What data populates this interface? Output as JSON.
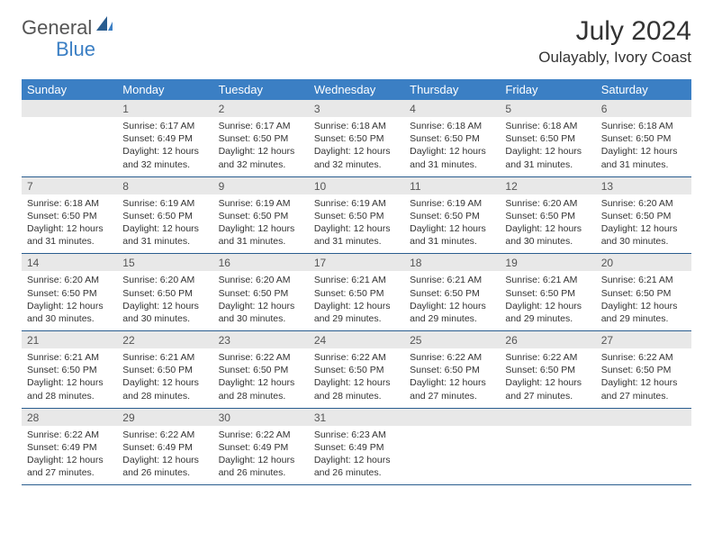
{
  "logo": {
    "text1": "General",
    "text2": "Blue"
  },
  "title": "July 2024",
  "location": "Oulayably, Ivory Coast",
  "header_bg": "#3b7fc4",
  "header_fg": "#ffffff",
  "daynum_bg": "#e8e8e8",
  "border_color": "#2a5d8f",
  "weekdays": [
    "Sunday",
    "Monday",
    "Tuesday",
    "Wednesday",
    "Thursday",
    "Friday",
    "Saturday"
  ],
  "weeks": [
    {
      "nums": [
        "",
        "1",
        "2",
        "3",
        "4",
        "5",
        "6"
      ],
      "cells": [
        {
          "empty": true
        },
        {
          "sunrise": "Sunrise: 6:17 AM",
          "sunset": "Sunset: 6:49 PM",
          "d1": "Daylight: 12 hours",
          "d2": "and 32 minutes."
        },
        {
          "sunrise": "Sunrise: 6:17 AM",
          "sunset": "Sunset: 6:50 PM",
          "d1": "Daylight: 12 hours",
          "d2": "and 32 minutes."
        },
        {
          "sunrise": "Sunrise: 6:18 AM",
          "sunset": "Sunset: 6:50 PM",
          "d1": "Daylight: 12 hours",
          "d2": "and 32 minutes."
        },
        {
          "sunrise": "Sunrise: 6:18 AM",
          "sunset": "Sunset: 6:50 PM",
          "d1": "Daylight: 12 hours",
          "d2": "and 31 minutes."
        },
        {
          "sunrise": "Sunrise: 6:18 AM",
          "sunset": "Sunset: 6:50 PM",
          "d1": "Daylight: 12 hours",
          "d2": "and 31 minutes."
        },
        {
          "sunrise": "Sunrise: 6:18 AM",
          "sunset": "Sunset: 6:50 PM",
          "d1": "Daylight: 12 hours",
          "d2": "and 31 minutes."
        }
      ]
    },
    {
      "nums": [
        "7",
        "8",
        "9",
        "10",
        "11",
        "12",
        "13"
      ],
      "cells": [
        {
          "sunrise": "Sunrise: 6:18 AM",
          "sunset": "Sunset: 6:50 PM",
          "d1": "Daylight: 12 hours",
          "d2": "and 31 minutes."
        },
        {
          "sunrise": "Sunrise: 6:19 AM",
          "sunset": "Sunset: 6:50 PM",
          "d1": "Daylight: 12 hours",
          "d2": "and 31 minutes."
        },
        {
          "sunrise": "Sunrise: 6:19 AM",
          "sunset": "Sunset: 6:50 PM",
          "d1": "Daylight: 12 hours",
          "d2": "and 31 minutes."
        },
        {
          "sunrise": "Sunrise: 6:19 AM",
          "sunset": "Sunset: 6:50 PM",
          "d1": "Daylight: 12 hours",
          "d2": "and 31 minutes."
        },
        {
          "sunrise": "Sunrise: 6:19 AM",
          "sunset": "Sunset: 6:50 PM",
          "d1": "Daylight: 12 hours",
          "d2": "and 31 minutes."
        },
        {
          "sunrise": "Sunrise: 6:20 AM",
          "sunset": "Sunset: 6:50 PM",
          "d1": "Daylight: 12 hours",
          "d2": "and 30 minutes."
        },
        {
          "sunrise": "Sunrise: 6:20 AM",
          "sunset": "Sunset: 6:50 PM",
          "d1": "Daylight: 12 hours",
          "d2": "and 30 minutes."
        }
      ]
    },
    {
      "nums": [
        "14",
        "15",
        "16",
        "17",
        "18",
        "19",
        "20"
      ],
      "cells": [
        {
          "sunrise": "Sunrise: 6:20 AM",
          "sunset": "Sunset: 6:50 PM",
          "d1": "Daylight: 12 hours",
          "d2": "and 30 minutes."
        },
        {
          "sunrise": "Sunrise: 6:20 AM",
          "sunset": "Sunset: 6:50 PM",
          "d1": "Daylight: 12 hours",
          "d2": "and 30 minutes."
        },
        {
          "sunrise": "Sunrise: 6:20 AM",
          "sunset": "Sunset: 6:50 PM",
          "d1": "Daylight: 12 hours",
          "d2": "and 30 minutes."
        },
        {
          "sunrise": "Sunrise: 6:21 AM",
          "sunset": "Sunset: 6:50 PM",
          "d1": "Daylight: 12 hours",
          "d2": "and 29 minutes."
        },
        {
          "sunrise": "Sunrise: 6:21 AM",
          "sunset": "Sunset: 6:50 PM",
          "d1": "Daylight: 12 hours",
          "d2": "and 29 minutes."
        },
        {
          "sunrise": "Sunrise: 6:21 AM",
          "sunset": "Sunset: 6:50 PM",
          "d1": "Daylight: 12 hours",
          "d2": "and 29 minutes."
        },
        {
          "sunrise": "Sunrise: 6:21 AM",
          "sunset": "Sunset: 6:50 PM",
          "d1": "Daylight: 12 hours",
          "d2": "and 29 minutes."
        }
      ]
    },
    {
      "nums": [
        "21",
        "22",
        "23",
        "24",
        "25",
        "26",
        "27"
      ],
      "cells": [
        {
          "sunrise": "Sunrise: 6:21 AM",
          "sunset": "Sunset: 6:50 PM",
          "d1": "Daylight: 12 hours",
          "d2": "and 28 minutes."
        },
        {
          "sunrise": "Sunrise: 6:21 AM",
          "sunset": "Sunset: 6:50 PM",
          "d1": "Daylight: 12 hours",
          "d2": "and 28 minutes."
        },
        {
          "sunrise": "Sunrise: 6:22 AM",
          "sunset": "Sunset: 6:50 PM",
          "d1": "Daylight: 12 hours",
          "d2": "and 28 minutes."
        },
        {
          "sunrise": "Sunrise: 6:22 AM",
          "sunset": "Sunset: 6:50 PM",
          "d1": "Daylight: 12 hours",
          "d2": "and 28 minutes."
        },
        {
          "sunrise": "Sunrise: 6:22 AM",
          "sunset": "Sunset: 6:50 PM",
          "d1": "Daylight: 12 hours",
          "d2": "and 27 minutes."
        },
        {
          "sunrise": "Sunrise: 6:22 AM",
          "sunset": "Sunset: 6:50 PM",
          "d1": "Daylight: 12 hours",
          "d2": "and 27 minutes."
        },
        {
          "sunrise": "Sunrise: 6:22 AM",
          "sunset": "Sunset: 6:50 PM",
          "d1": "Daylight: 12 hours",
          "d2": "and 27 minutes."
        }
      ]
    },
    {
      "nums": [
        "28",
        "29",
        "30",
        "31",
        "",
        "",
        ""
      ],
      "cells": [
        {
          "sunrise": "Sunrise: 6:22 AM",
          "sunset": "Sunset: 6:49 PM",
          "d1": "Daylight: 12 hours",
          "d2": "and 27 minutes."
        },
        {
          "sunrise": "Sunrise: 6:22 AM",
          "sunset": "Sunset: 6:49 PM",
          "d1": "Daylight: 12 hours",
          "d2": "and 26 minutes."
        },
        {
          "sunrise": "Sunrise: 6:22 AM",
          "sunset": "Sunset: 6:49 PM",
          "d1": "Daylight: 12 hours",
          "d2": "and 26 minutes."
        },
        {
          "sunrise": "Sunrise: 6:23 AM",
          "sunset": "Sunset: 6:49 PM",
          "d1": "Daylight: 12 hours",
          "d2": "and 26 minutes."
        },
        {
          "empty": true
        },
        {
          "empty": true
        },
        {
          "empty": true
        }
      ]
    }
  ]
}
